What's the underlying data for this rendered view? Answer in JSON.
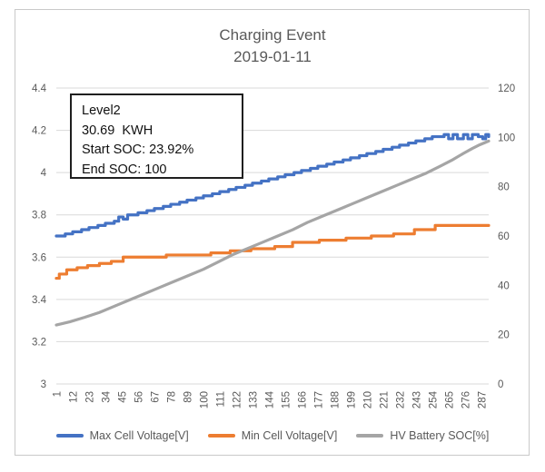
{
  "chart_data": {
    "type": "line",
    "title": "Charging Event",
    "subtitle": "2019-01-11",
    "annotation": {
      "lines": [
        "Level2",
        "30.69  KWH",
        "Start SOC: 23.92%",
        "End SOC: 100"
      ]
    },
    "grid": true,
    "legend_position": "bottom",
    "axes": {
      "left": {
        "min": 3,
        "max": 4.4,
        "ticks": [
          "4.4",
          "4.2",
          "4",
          "3.8",
          "3.6",
          "3.4",
          "3.2",
          "3"
        ]
      },
      "right": {
        "min": 0,
        "max": 120,
        "ticks": [
          "120",
          "100",
          "80",
          "60",
          "40",
          "20",
          "0"
        ]
      },
      "x": {
        "min": 1,
        "max": 292,
        "tick_labels": [
          "1",
          "12",
          "23",
          "34",
          "45",
          "56",
          "67",
          "78",
          "89",
          "100",
          "111",
          "122",
          "133",
          "144",
          "155",
          "166",
          "177",
          "188",
          "199",
          "210",
          "221",
          "232",
          "243",
          "254",
          "265",
          "276",
          "287"
        ]
      }
    },
    "series": [
      {
        "id": "max-cell-voltage",
        "name": "Max Cell Voltage[V]",
        "color": "#4472C4",
        "axis": "left",
        "interpolation": "step",
        "points": [
          [
            1,
            3.7
          ],
          [
            7,
            3.71
          ],
          [
            12,
            3.72
          ],
          [
            18,
            3.73
          ],
          [
            23,
            3.74
          ],
          [
            29,
            3.75
          ],
          [
            34,
            3.76
          ],
          [
            40,
            3.77
          ],
          [
            43,
            3.79
          ],
          [
            46,
            3.78
          ],
          [
            49,
            3.8
          ],
          [
            56,
            3.81
          ],
          [
            62,
            3.82
          ],
          [
            67,
            3.83
          ],
          [
            73,
            3.84
          ],
          [
            78,
            3.85
          ],
          [
            84,
            3.86
          ],
          [
            89,
            3.87
          ],
          [
            95,
            3.88
          ],
          [
            100,
            3.89
          ],
          [
            106,
            3.9
          ],
          [
            111,
            3.91
          ],
          [
            117,
            3.92
          ],
          [
            122,
            3.93
          ],
          [
            128,
            3.94
          ],
          [
            133,
            3.95
          ],
          [
            139,
            3.96
          ],
          [
            144,
            3.97
          ],
          [
            150,
            3.98
          ],
          [
            155,
            3.99
          ],
          [
            161,
            4.0
          ],
          [
            166,
            4.01
          ],
          [
            172,
            4.02
          ],
          [
            177,
            4.03
          ],
          [
            183,
            4.04
          ],
          [
            188,
            4.05
          ],
          [
            194,
            4.06
          ],
          [
            199,
            4.07
          ],
          [
            205,
            4.08
          ],
          [
            210,
            4.09
          ],
          [
            216,
            4.1
          ],
          [
            221,
            4.11
          ],
          [
            227,
            4.12
          ],
          [
            232,
            4.13
          ],
          [
            238,
            4.14
          ],
          [
            243,
            4.15
          ],
          [
            249,
            4.16
          ],
          [
            254,
            4.17
          ],
          [
            262,
            4.18
          ],
          [
            265,
            4.16
          ],
          [
            268,
            4.18
          ],
          [
            271,
            4.16
          ],
          [
            275,
            4.18
          ],
          [
            278,
            4.16
          ],
          [
            281,
            4.18
          ],
          [
            285,
            4.17
          ],
          [
            288,
            4.16
          ],
          [
            290,
            4.18
          ],
          [
            292,
            4.17
          ]
        ]
      },
      {
        "id": "min-cell-voltage",
        "name": "Min Cell Voltage[V]",
        "color": "#ED7D31",
        "axis": "left",
        "interpolation": "step",
        "points": [
          [
            1,
            3.5
          ],
          [
            3,
            3.52
          ],
          [
            8,
            3.54
          ],
          [
            15,
            3.55
          ],
          [
            22,
            3.56
          ],
          [
            30,
            3.57
          ],
          [
            38,
            3.58
          ],
          [
            46,
            3.6
          ],
          [
            75,
            3.61
          ],
          [
            105,
            3.62
          ],
          [
            118,
            3.63
          ],
          [
            132,
            3.64
          ],
          [
            148,
            3.65
          ],
          [
            160,
            3.67
          ],
          [
            178,
            3.68
          ],
          [
            196,
            3.69
          ],
          [
            213,
            3.7
          ],
          [
            228,
            3.71
          ],
          [
            242,
            3.73
          ],
          [
            256,
            3.75
          ],
          [
            292,
            3.75
          ]
        ]
      },
      {
        "id": "hv-battery-soc",
        "name": "HV Battery SOC[%]",
        "color": "#A5A5A5",
        "axis": "right",
        "interpolation": "linear",
        "points": [
          [
            1,
            23.92
          ],
          [
            10,
            25.2
          ],
          [
            20,
            27
          ],
          [
            30,
            29
          ],
          [
            40,
            31.5
          ],
          [
            50,
            34
          ],
          [
            60,
            36.5
          ],
          [
            70,
            39
          ],
          [
            80,
            41.5
          ],
          [
            90,
            44
          ],
          [
            100,
            46.5
          ],
          [
            110,
            49.5
          ],
          [
            120,
            52.5
          ],
          [
            130,
            55
          ],
          [
            140,
            57.5
          ],
          [
            150,
            60
          ],
          [
            160,
            62.5
          ],
          [
            170,
            65.5
          ],
          [
            180,
            68
          ],
          [
            190,
            70.5
          ],
          [
            200,
            73
          ],
          [
            210,
            75.5
          ],
          [
            220,
            78
          ],
          [
            230,
            80.5
          ],
          [
            240,
            83
          ],
          [
            250,
            85.5
          ],
          [
            260,
            88.5
          ],
          [
            268,
            91
          ],
          [
            275,
            93.5
          ],
          [
            281,
            95.5
          ],
          [
            286,
            97
          ],
          [
            290,
            98
          ],
          [
            292,
            98.5
          ]
        ]
      }
    ],
    "colors": {
      "gridline": "#d9d9d9",
      "axis_text": "#595959",
      "title_text": "#595959"
    }
  }
}
